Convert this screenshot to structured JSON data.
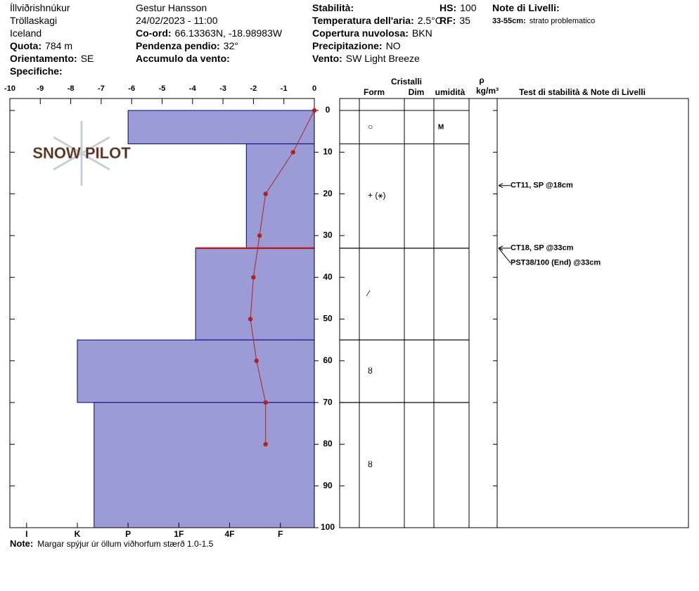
{
  "header": {
    "columns": [
      [
        {
          "value": "Íllviðrishnúkur"
        },
        {
          "value": "Tröllaskagi"
        },
        {
          "value": "Iceland"
        },
        {
          "label": "Quota:",
          "value": "784 m"
        },
        {
          "label": "Orientamento:",
          "value": "SE"
        },
        {
          "label": "Specifiche:"
        }
      ],
      [
        {
          "value": "Gestur Hansson"
        },
        {
          "value": "24/02/2023 - 11:00"
        },
        {
          "label": "Co-ord:",
          "value": "66.13363N, -18.98983W"
        },
        {
          "label": "Pendenza pendio:",
          "value": "32°"
        },
        {
          "label": "Accumulo da vento:"
        }
      ],
      [
        {
          "label": "Stabilità:"
        },
        {
          "label": "Temperatura dell'aria:",
          "value": "2.5°C"
        },
        {
          "label": "Copertura nuvolosa:",
          "value": "BKN"
        },
        {
          "label": "Precipitazione:",
          "value": "NO"
        },
        {
          "label": "Vento:",
          "value": "SW Light Breeze"
        }
      ],
      [
        {
          "label": "HS:",
          "value": "100"
        },
        {
          "label": "RF:",
          "value": "35"
        }
      ],
      [
        {
          "label": "Note di Livelli:"
        },
        {
          "label": "33-55cm:",
          "value": "strato problematico"
        }
      ]
    ]
  },
  "watermark": "SNOW PILOT",
  "chart_data": {
    "type": "snow-profile",
    "xlim": [
      -10,
      0
    ],
    "xticks": [
      -10,
      -9,
      -8,
      -7,
      -6,
      -5,
      -4,
      -3,
      -2,
      -1,
      0
    ],
    "ylim": [
      0,
      100
    ],
    "yticks": [
      0,
      10,
      20,
      30,
      40,
      50,
      60,
      70,
      80,
      90,
      100
    ],
    "hardness_lim": [
      6.33,
      0.33
    ],
    "hardness_ticks": [
      {
        "value": 6,
        "label": "I"
      },
      {
        "value": 5,
        "label": "K"
      },
      {
        "value": 4,
        "label": "P"
      },
      {
        "value": 3,
        "label": "1F"
      },
      {
        "value": 2,
        "label": "4F"
      },
      {
        "value": 1,
        "label": "F"
      }
    ],
    "layer_color": "#9b9bd6",
    "temperature_color": "#b22222",
    "temperature": {
      "depths": [
        0,
        10,
        20,
        30,
        40,
        50,
        60,
        70,
        80
      ],
      "values": [
        0,
        -0.7,
        -1.6,
        -1.8,
        -2.0,
        -2.1,
        -1.9,
        -1.6,
        -1.6
      ]
    },
    "problem_depth": 33,
    "layers": [
      {
        "top": 0,
        "bottom": 8,
        "hardness": 4,
        "crystal": "○",
        "wetness": "M"
      },
      {
        "top": 8,
        "bottom": 33,
        "hardness": 1.67,
        "crystal": "+ (⚹)"
      },
      {
        "top": 33,
        "bottom": 55,
        "hardness": 2.67,
        "crystal": "⁄"
      },
      {
        "top": 55,
        "bottom": 70,
        "hardness": 5,
        "crystal": "ȣ"
      },
      {
        "top": 70,
        "bottom": 100,
        "hardness": 4.67,
        "crystal": "ȣ"
      }
    ]
  },
  "table": {
    "headers": [
      "Cristalli",
      "Form",
      "Dim",
      "umidità",
      "ρ",
      "kg/m³",
      "Test di stabilità & Note di Livelli"
    ],
    "tests": [
      {
        "depth": 18,
        "label": "CT11, SP @18cm"
      },
      {
        "depth": 33,
        "label": "CT18, SP @33cm"
      },
      {
        "depth": 33,
        "label": "PST38/100 (End) @33cm"
      }
    ]
  },
  "note": {
    "label": "Note:",
    "text": "Margar spýjur úr öllum viðhorfum stærð 1.0-1.5"
  }
}
